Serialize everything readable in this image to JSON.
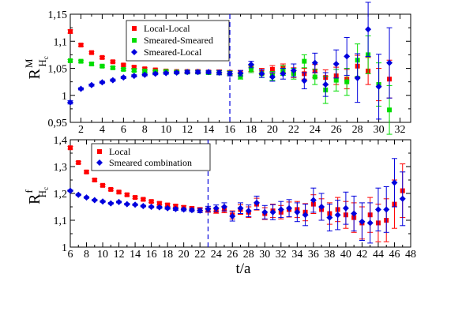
{
  "figure": {
    "xlabel": "t/a"
  },
  "chart_data": [
    {
      "type": "scatter",
      "ylabel": "R",
      "ylabel_sup": "M",
      "ylabel_sub": "H",
      "ylabel_subsub": "c",
      "xlim": [
        1,
        33
      ],
      "ylim": [
        0.95,
        1.15
      ],
      "xticks": [
        2,
        4,
        6,
        8,
        10,
        12,
        14,
        16,
        18,
        20,
        22,
        24,
        26,
        28,
        30,
        32
      ],
      "yticks": [
        0.95,
        1,
        1.05,
        1.1,
        1.15
      ],
      "ytick_labels": [
        "0,95",
        "1",
        "1,05",
        "1,1",
        "1,15"
      ],
      "vline": 16,
      "legend_position": "top-left",
      "series": [
        {
          "name": "Local-Local",
          "color": "#ff0000",
          "marker": "square",
          "x": [
            1,
            2,
            3,
            4,
            5,
            6,
            7,
            8,
            9,
            10,
            11,
            12,
            13,
            14,
            15,
            16,
            17,
            18,
            19,
            20,
            21,
            22,
            23,
            24,
            25,
            26,
            27,
            28,
            29,
            30,
            31
          ],
          "y": [
            1.118,
            1.093,
            1.079,
            1.07,
            1.062,
            1.056,
            1.052,
            1.049,
            1.047,
            1.045,
            1.044,
            1.044,
            1.044,
            1.043,
            1.043,
            1.042,
            1.041,
            1.05,
            1.044,
            1.048,
            1.05,
            1.042,
            1.04,
            1.045,
            1.033,
            1.036,
            1.03,
            1.054,
            1.045,
            1.02,
            1.03
          ],
          "err": [
            0.003,
            0.002,
            0.002,
            0.002,
            0.002,
            0.002,
            0.002,
            0.002,
            0.002,
            0.002,
            0.002,
            0.003,
            0.003,
            0.003,
            0.004,
            0.004,
            0.005,
            0.006,
            0.006,
            0.007,
            0.008,
            0.009,
            0.01,
            0.012,
            0.014,
            0.016,
            0.018,
            0.02,
            0.025,
            0.03,
            0.035
          ]
        },
        {
          "name": "Smeared-Smeared",
          "color": "#00dd00",
          "marker": "square",
          "x": [
            1,
            2,
            3,
            4,
            5,
            6,
            7,
            8,
            9,
            10,
            11,
            12,
            13,
            14,
            15,
            16,
            17,
            18,
            19,
            20,
            21,
            22,
            23,
            24,
            25,
            26,
            27,
            28,
            29,
            30,
            31
          ],
          "y": [
            1.064,
            1.063,
            1.058,
            1.054,
            1.051,
            1.048,
            1.046,
            1.045,
            1.044,
            1.044,
            1.043,
            1.043,
            1.043,
            1.042,
            1.042,
            1.041,
            1.035,
            1.048,
            1.04,
            1.036,
            1.046,
            1.04,
            1.063,
            1.034,
            1.01,
            1.028,
            1.025,
            1.065,
            1.075,
            1.02,
            0.973
          ],
          "err": [
            0.002,
            0.002,
            0.002,
            0.002,
            0.002,
            0.002,
            0.002,
            0.002,
            0.002,
            0.002,
            0.002,
            0.003,
            0.003,
            0.003,
            0.004,
            0.004,
            0.005,
            0.006,
            0.007,
            0.008,
            0.009,
            0.01,
            0.012,
            0.014,
            0.025,
            0.02,
            0.025,
            0.03,
            0.035,
            0.04,
            0.045
          ]
        },
        {
          "name": "Smeared-Local",
          "color": "#0000dd",
          "marker": "diamond",
          "x": [
            1,
            2,
            3,
            4,
            5,
            6,
            7,
            8,
            9,
            10,
            11,
            12,
            13,
            14,
            15,
            16,
            17,
            18,
            19,
            20,
            21,
            22,
            23,
            24,
            25,
            26,
            27,
            28,
            29,
            30,
            31
          ],
          "y": [
            0.987,
            1.012,
            1.019,
            1.024,
            1.028,
            1.033,
            1.036,
            1.038,
            1.04,
            1.041,
            1.042,
            1.043,
            1.043,
            1.043,
            1.042,
            1.04,
            1.041,
            1.057,
            1.04,
            1.034,
            1.04,
            1.046,
            1.027,
            1.06,
            1.02,
            1.058,
            1.072,
            1.032,
            1.122,
            1.016,
            1.06
          ],
          "err": [
            0.003,
            0.002,
            0.002,
            0.002,
            0.002,
            0.002,
            0.002,
            0.002,
            0.002,
            0.002,
            0.002,
            0.003,
            0.003,
            0.003,
            0.004,
            0.004,
            0.005,
            0.006,
            0.007,
            0.008,
            0.01,
            0.012,
            0.015,
            0.018,
            0.022,
            0.026,
            0.035,
            0.045,
            0.05,
            0.06,
            0.065
          ]
        }
      ]
    },
    {
      "type": "scatter",
      "xlabel": "t/a",
      "ylabel": "R",
      "ylabel_sup": "f",
      "ylabel_sub": "H",
      "ylabel_subsub": "c",
      "xlim": [
        6,
        48
      ],
      "ylim": [
        1.0,
        1.4
      ],
      "xticks": [
        6,
        8,
        10,
        12,
        14,
        16,
        18,
        20,
        22,
        24,
        26,
        28,
        30,
        32,
        34,
        36,
        38,
        40,
        42,
        44,
        46,
        48
      ],
      "yticks": [
        1.0,
        1.1,
        1.2,
        1.3,
        1.4
      ],
      "ytick_labels": [
        "1",
        "1,1",
        "1,2",
        "1,3",
        "1,4"
      ],
      "vline": 23,
      "legend_position": "top-left",
      "series": [
        {
          "name": "Local",
          "color": "#ff0000",
          "marker": "square",
          "x": [
            6,
            7,
            8,
            9,
            10,
            11,
            12,
            13,
            14,
            15,
            16,
            17,
            18,
            19,
            20,
            21,
            22,
            23,
            24,
            25,
            26,
            27,
            28,
            29,
            30,
            31,
            32,
            33,
            34,
            35,
            36,
            37,
            38,
            39,
            40,
            41,
            42,
            43,
            44,
            45,
            46,
            47
          ],
          "y": [
            1.37,
            1.315,
            1.28,
            1.25,
            1.23,
            1.215,
            1.205,
            1.195,
            1.185,
            1.178,
            1.17,
            1.163,
            1.157,
            1.153,
            1.148,
            1.144,
            1.14,
            1.138,
            1.136,
            1.14,
            1.12,
            1.14,
            1.13,
            1.16,
            1.125,
            1.135,
            1.13,
            1.14,
            1.14,
            1.13,
            1.16,
            1.14,
            1.125,
            1.14,
            1.12,
            1.11,
            1.09,
            1.12,
            1.09,
            1.1,
            1.16,
            1.21
          ],
          "err": [
            0.005,
            0.004,
            0.004,
            0.004,
            0.004,
            0.004,
            0.004,
            0.004,
            0.004,
            0.004,
            0.004,
            0.005,
            0.005,
            0.005,
            0.006,
            0.006,
            0.007,
            0.008,
            0.01,
            0.012,
            0.015,
            0.018,
            0.02,
            0.022,
            0.022,
            0.025,
            0.025,
            0.028,
            0.03,
            0.032,
            0.035,
            0.04,
            0.04,
            0.045,
            0.05,
            0.055,
            0.06,
            0.065,
            0.07,
            0.08,
            0.09,
            0.1
          ]
        },
        {
          "name": "Smeared combination",
          "color": "#0000dd",
          "marker": "diamond",
          "x": [
            6,
            7,
            8,
            9,
            10,
            11,
            12,
            13,
            14,
            15,
            16,
            17,
            18,
            19,
            20,
            21,
            22,
            23,
            24,
            25,
            26,
            27,
            28,
            29,
            30,
            31,
            32,
            33,
            34,
            35,
            36,
            37,
            38,
            39,
            40,
            41,
            42,
            43,
            44,
            45,
            46,
            47
          ],
          "y": [
            1.21,
            1.195,
            1.185,
            1.175,
            1.17,
            1.163,
            1.168,
            1.16,
            1.158,
            1.153,
            1.15,
            1.148,
            1.145,
            1.142,
            1.14,
            1.138,
            1.136,
            1.142,
            1.145,
            1.15,
            1.115,
            1.145,
            1.135,
            1.165,
            1.13,
            1.13,
            1.14,
            1.145,
            1.13,
            1.12,
            1.175,
            1.15,
            1.11,
            1.12,
            1.145,
            1.125,
            1.095,
            1.09,
            1.14,
            1.14,
            1.24,
            1.18
          ],
          "err": [
            0.003,
            0.003,
            0.003,
            0.003,
            0.003,
            0.003,
            0.003,
            0.003,
            0.003,
            0.003,
            0.003,
            0.004,
            0.004,
            0.005,
            0.005,
            0.006,
            0.008,
            0.01,
            0.012,
            0.015,
            0.018,
            0.02,
            0.022,
            0.025,
            0.025,
            0.028,
            0.03,
            0.032,
            0.035,
            0.04,
            0.045,
            0.05,
            0.05,
            0.055,
            0.06,
            0.065,
            0.07,
            0.075,
            0.08,
            0.085,
            0.09,
            0.1
          ]
        }
      ]
    }
  ]
}
